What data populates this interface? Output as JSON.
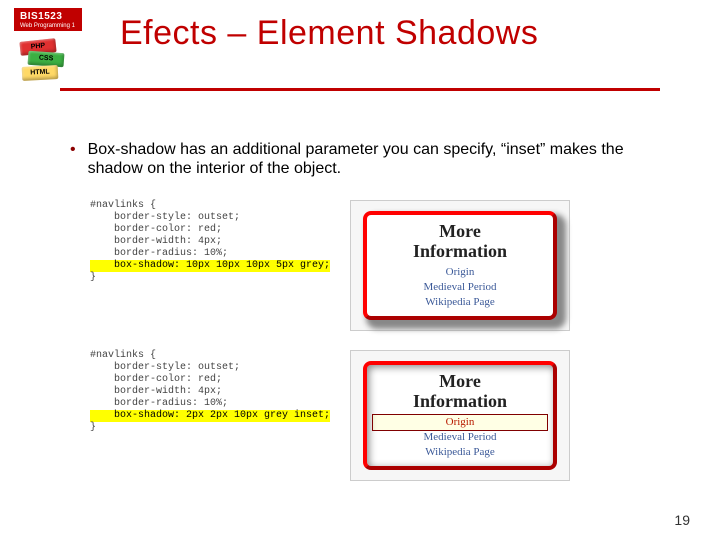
{
  "course": {
    "code": "BIS1523",
    "subtitle": "Web Programming 1"
  },
  "lego": {
    "brick1": "PHP",
    "brick2": "CSS",
    "brick3": "HTML"
  },
  "title": "Efects – Element Shadows",
  "bullet": "Box-shadow has an additional parameter you can specify, “inset” makes the shadow on the interior of the object.",
  "code1": {
    "selector": "#navlinks {",
    "l1": "    border-style: outset;",
    "l2": "    border-color: red;",
    "l3": "    border-width: 4px;",
    "l4": "    border-radius: 10%;",
    "hl": "    box-shadow: 10px 10px 10px 5px grey;",
    "close": "}"
  },
  "code2": {
    "selector": "#navlinks {",
    "l1": "    border-style: outset;",
    "l2": "    border-color: red;",
    "l3": "    border-width: 4px;",
    "l4": "    border-radius: 10%;",
    "hl": "    box-shadow: 2px 2px 10px grey inset;",
    "close": "}"
  },
  "demo": {
    "heading1": "More",
    "heading2": "Information",
    "link1": "Origin",
    "link2": "Medieval Period",
    "link3": "Wikipedia Page"
  },
  "pageNumber": "19",
  "colors": {
    "brand": "#c00000",
    "highlight": "#ffff00"
  }
}
